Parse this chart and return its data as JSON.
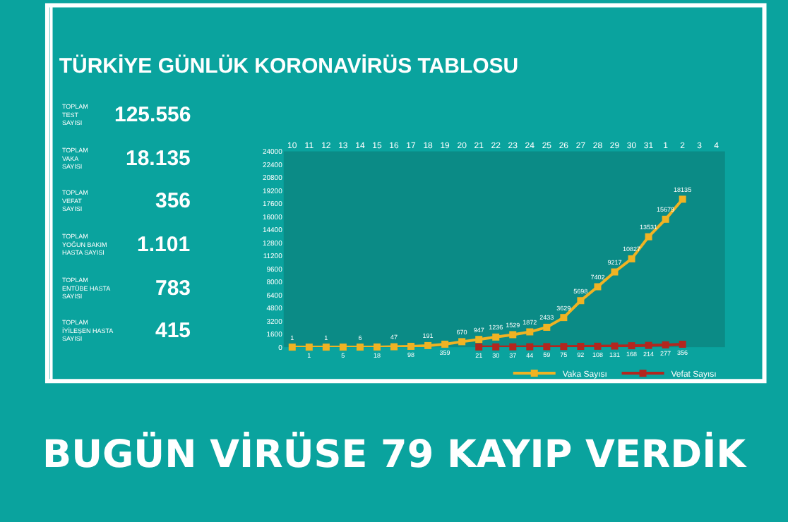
{
  "chart_data": {
    "type": "line",
    "title": "TÜRKİYE GÜNLÜK KORONAVİRÜS TABLOSU",
    "categories": [
      "10",
      "11",
      "12",
      "13",
      "14",
      "15",
      "16",
      "17",
      "18",
      "19",
      "20",
      "21",
      "22",
      "23",
      "24",
      "25",
      "26",
      "27",
      "28",
      "29",
      "30",
      "31",
      "1",
      "2",
      "3",
      "4"
    ],
    "series": [
      {
        "name": "Vaka Sayısı",
        "color": "#f0b323",
        "values": [
          1,
          1,
          1,
          5,
          6,
          18,
          47,
          98,
          191,
          359,
          670,
          947,
          1236,
          1529,
          1872,
          2433,
          3629,
          5698,
          7402,
          9217,
          10827,
          13531,
          15679,
          18135,
          null,
          null
        ]
      },
      {
        "name": "Vefat Sayısı",
        "color": "#b3261e",
        "values": [
          null,
          null,
          null,
          null,
          null,
          null,
          null,
          null,
          null,
          null,
          null,
          21,
          30,
          37,
          44,
          59,
          75,
          92,
          108,
          131,
          168,
          214,
          277,
          356,
          null,
          null
        ]
      }
    ],
    "ylim": [
      0,
      24000
    ],
    "yticks": [
      0,
      1600,
      3200,
      4800,
      6400,
      8000,
      9600,
      11200,
      12800,
      14400,
      16000,
      17600,
      19200,
      20800,
      22400,
      24000
    ],
    "data_labels": true,
    "marker": "square",
    "legend": "bottom right",
    "grid": false,
    "annotations": [
      "TOPLAM TEST SAYISI",
      "125.556",
      "TOPLAM VAKA SAYISI",
      "18.135",
      "TOPLAM VEFAT SAYISI",
      "356",
      "TOPLAM YOĞUN BAKIM HASTA SAYISI",
      "1.101",
      "TOPLAM ENTÜBE HASTA SAYISI",
      "783",
      "TOPLAM İYİLEŞEN HASTA SAYISI",
      "415",
      "BUGÜN VİRÜSE 79 KAYIP VERDİK"
    ]
  }
}
